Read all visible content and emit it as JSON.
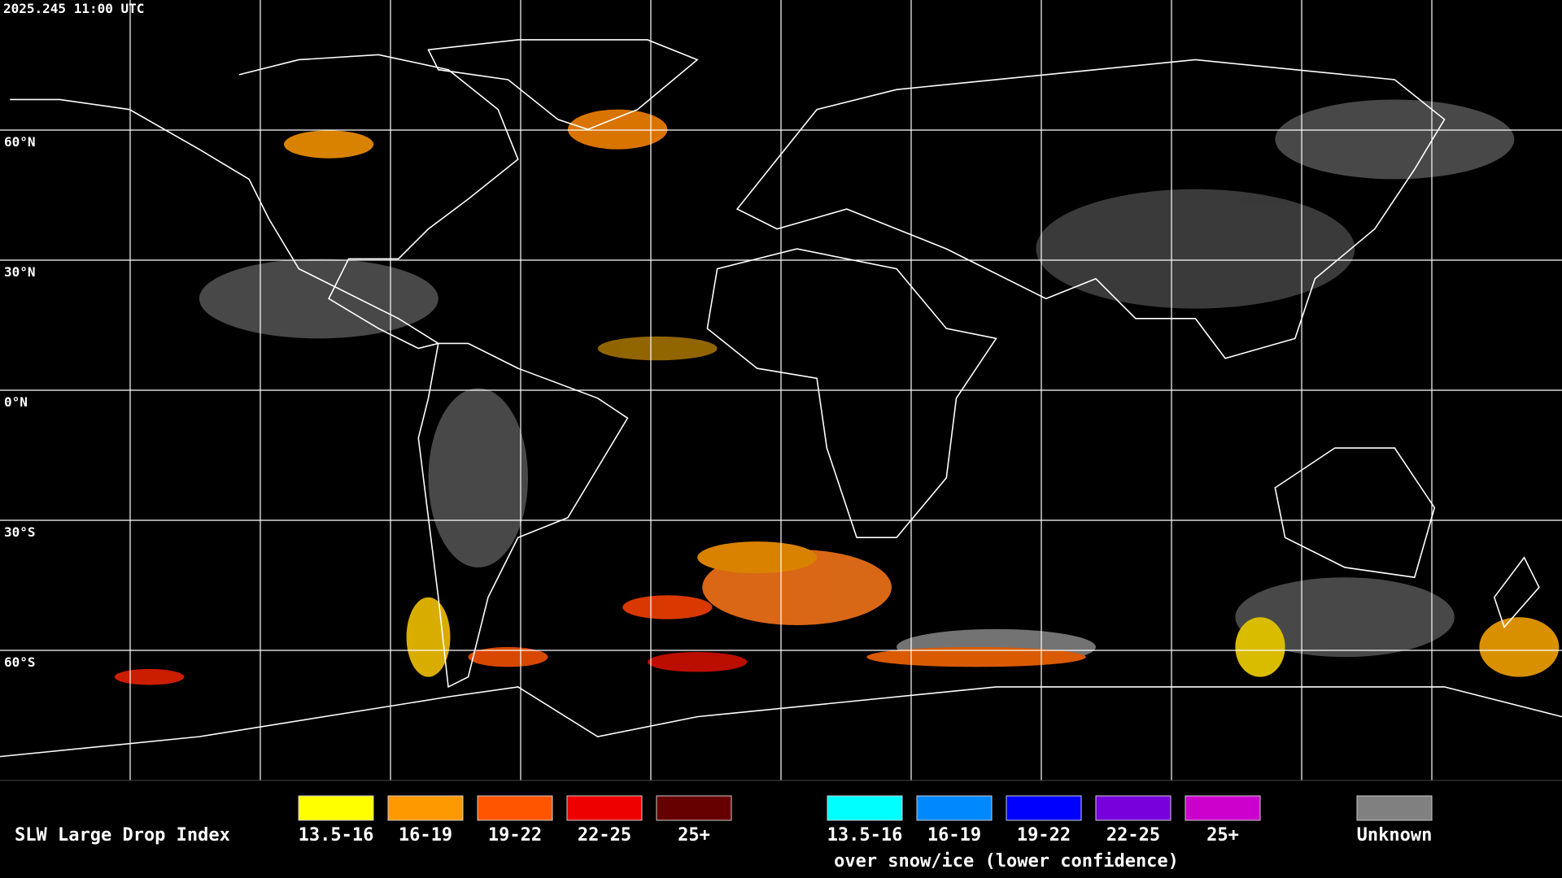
{
  "header": {
    "timestamp": "2025.245 11:00 UTC"
  },
  "map": {
    "latitude_labels": [
      "60°N",
      "30°N",
      "0°N",
      "30°S",
      "60°S"
    ]
  },
  "legend": {
    "title": "SLW Large Drop Index",
    "liquid": [
      {
        "label": "13.5-16",
        "color": "#ffff00"
      },
      {
        "label": "16-19",
        "color": "#ff9900"
      },
      {
        "label": "19-22",
        "color": "#ff5500"
      },
      {
        "label": "22-25",
        "color": "#ee0000"
      },
      {
        "label": "25+",
        "color": "#660000"
      }
    ],
    "snow_ice": [
      {
        "label": "13.5-16",
        "color": "#00ffff"
      },
      {
        "label": "16-19",
        "color": "#0088ff"
      },
      {
        "label": "19-22",
        "color": "#0000ff"
      },
      {
        "label": "22-25",
        "color": "#7700dd"
      },
      {
        "label": "25+",
        "color": "#cc00cc"
      }
    ],
    "snow_ice_note": "over snow/ice (lower confidence)",
    "unknown": {
      "label": "Unknown",
      "color": "#808080"
    }
  }
}
